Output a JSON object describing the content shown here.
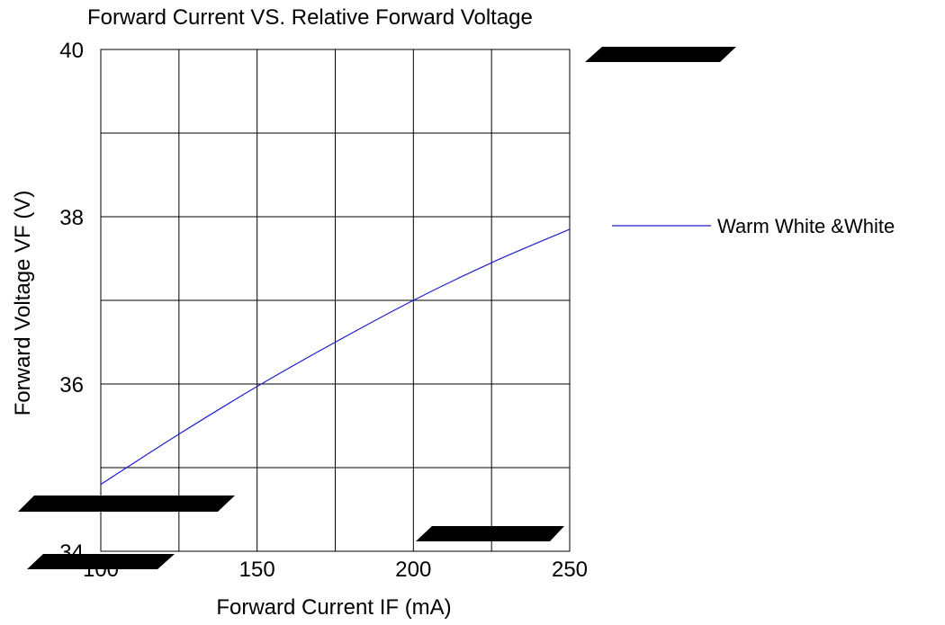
{
  "chart_data": {
    "type": "line",
    "title": "Forward Current VS.  Relative Forward Voltage",
    "xlabel": "Forward Current IF  (mA)",
    "ylabel": "Forward  Voltage  VF  (V)",
    "xlim": [
      100,
      250
    ],
    "ylim": [
      34,
      40
    ],
    "x_ticks": [
      100,
      150,
      200,
      250
    ],
    "x_tick_labels": [
      "100",
      "150",
      "200",
      "250"
    ],
    "y_ticks": [
      34,
      36,
      38,
      40
    ],
    "y_tick_labels": [
      "34",
      "36",
      "38",
      "40"
    ],
    "grid": true,
    "legend_position": "right",
    "series": [
      {
        "name": "Warm White &White",
        "color": "#1f1fd0",
        "x": [
          100,
          125,
          150,
          175,
          200,
          225,
          250
        ],
        "y": [
          34.8,
          35.4,
          35.97,
          36.5,
          37.0,
          37.45,
          37.85
        ]
      }
    ]
  }
}
